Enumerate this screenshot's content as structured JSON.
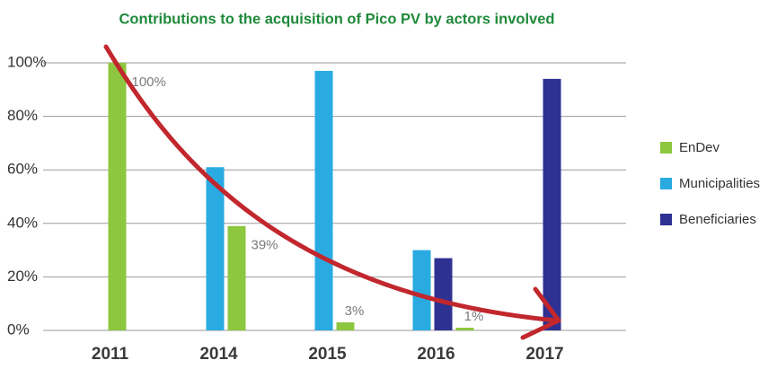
{
  "chart_data": {
    "type": "bar",
    "title": "Contributions to the acquisition of Pico PV  by actors involved",
    "categories": [
      "2011",
      "2014",
      "2015",
      "2016",
      "2017"
    ],
    "series": [
      {
        "name": "EnDev",
        "color": "#8dc63f",
        "values": [
          100,
          39,
          3,
          1,
          null
        ],
        "value_labels": [
          "100%",
          "39%",
          "3%",
          "1%",
          null
        ]
      },
      {
        "name": "Municipalities",
        "color": "#29abe2",
        "values": [
          null,
          61,
          97,
          30,
          null
        ]
      },
      {
        "name": "Beneficiaries",
        "color": "#2e3192",
        "values": [
          null,
          null,
          null,
          27,
          94
        ]
      }
    ],
    "ylim": [
      0,
      100
    ],
    "yticks": [
      {
        "value": 0,
        "label": "0%"
      },
      {
        "value": 20,
        "label": "20%"
      },
      {
        "value": 40,
        "label": "40%"
      },
      {
        "value": 60,
        "label": "60%"
      },
      {
        "value": 80,
        "label": "80%"
      },
      {
        "value": 100,
        "label": "100%"
      }
    ],
    "grid": true,
    "legend": "right"
  }
}
